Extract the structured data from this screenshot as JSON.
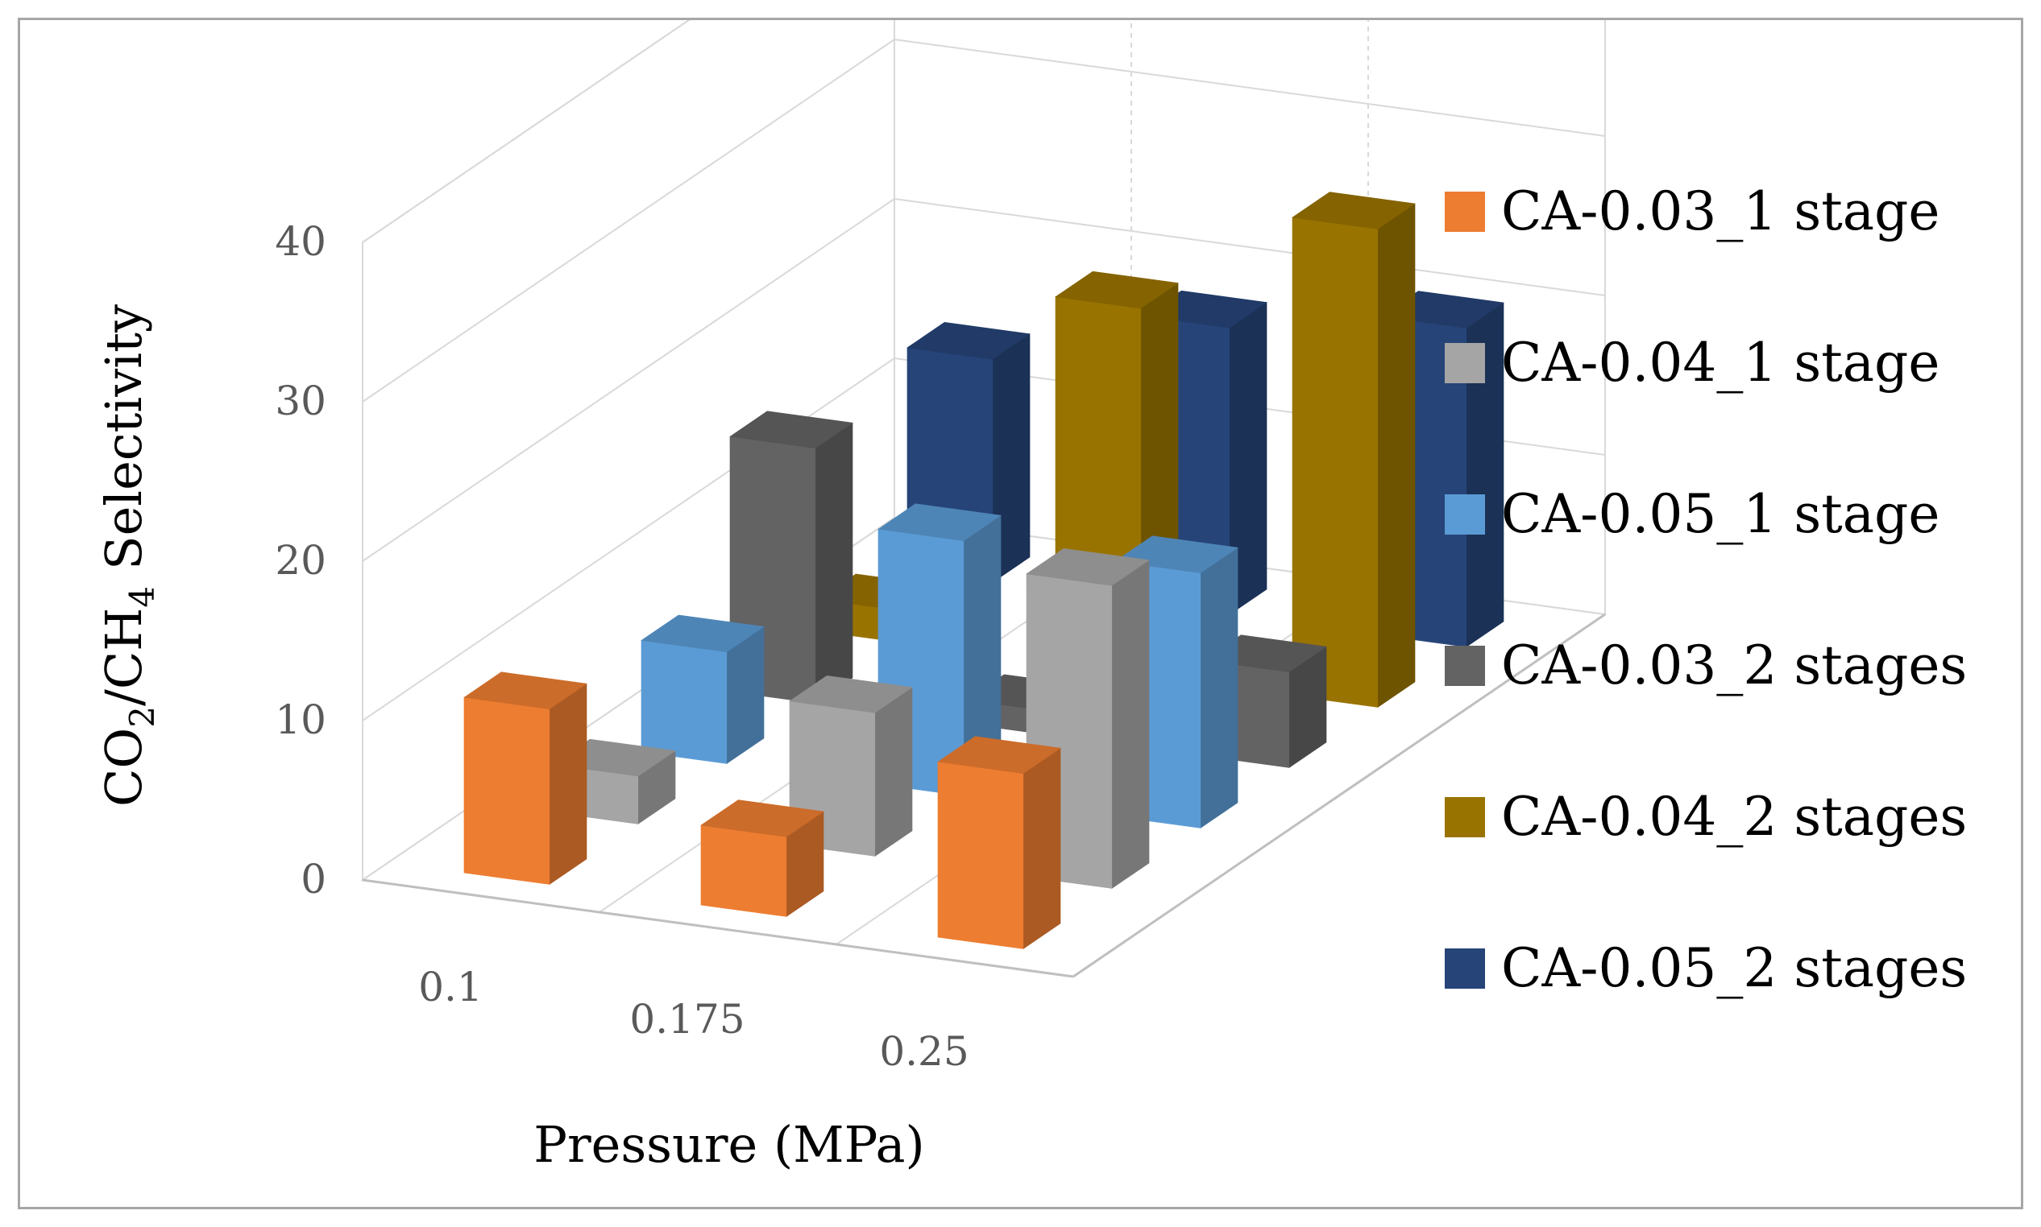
{
  "chart_data": {
    "type": "bar",
    "subtype": "3d-clustered-column",
    "title": "",
    "xlabel": "Pressure (MPa)",
    "ylabel": {
      "prefix": "CO",
      "sub1": "2",
      "mid": "/CH",
      "sub2": "4",
      "suffix": "Selectivity"
    },
    "categories": [
      "0.1",
      "0.175",
      "0.25"
    ],
    "ylim": [
      0,
      40
    ],
    "yticks": [
      "0",
      "10",
      "20",
      "30",
      "40"
    ],
    "grid": true,
    "legend_position": "right",
    "series": [
      {
        "name": "CA-0.03_1 stage",
        "color": "#ED7D31",
        "values": [
          11,
          5,
          11
        ]
      },
      {
        "name": "CA-0.04_1 stage",
        "color": "#A5A5A5",
        "values": [
          3,
          9,
          19
        ]
      },
      {
        "name": "CA-0.05_1 stage",
        "color": "#5B9BD5",
        "values": [
          7,
          16,
          16
        ]
      },
      {
        "name": "CA-0.03_2 stages",
        "color": "#636363",
        "values": [
          16,
          1.5,
          6
        ]
      },
      {
        "name": "CA-0.04_2 stages",
        "color": "#997300",
        "values": [
          2,
          23,
          30
        ]
      },
      {
        "name": "CA-0.05_2 stages",
        "color": "#264478",
        "values": [
          14,
          18,
          20
        ]
      }
    ]
  }
}
